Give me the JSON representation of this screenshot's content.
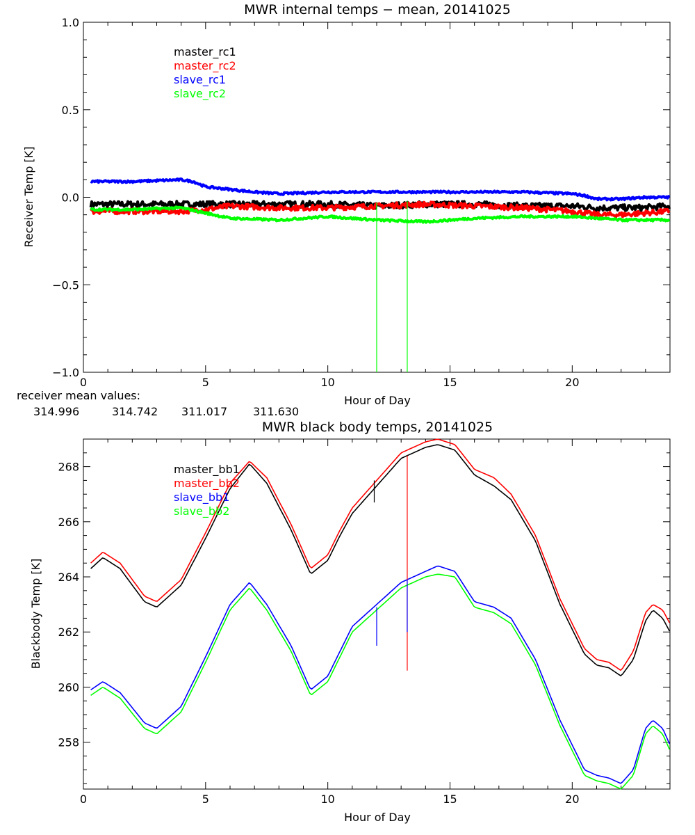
{
  "chart_data": [
    {
      "type": "line",
      "title": "MWR internal temps − mean, 20141025",
      "xlabel": "Hour of Day",
      "ylabel": "Receiver Temp [K]",
      "xlim": [
        0,
        24
      ],
      "ylim": [
        -1.0,
        1.0
      ],
      "xticks": [
        0,
        5,
        10,
        15,
        20
      ],
      "yticks": [
        -1.0,
        -0.5,
        0.0,
        0.5,
        1.0
      ],
      "ytick_labels": [
        "−1.0",
        "−0.5",
        "0.0",
        "0.5",
        "1.0"
      ],
      "legend": [
        "master_rc1",
        "master_rc2",
        "slave_rc1",
        "slave_rc2"
      ],
      "series": [
        {
          "name": "master_rc1",
          "color": "#000000",
          "x": [
            0.3,
            2,
            4,
            6,
            8,
            10,
            12,
            14,
            16,
            18,
            20,
            21,
            22,
            23,
            24
          ],
          "y": [
            -0.04,
            -0.04,
            -0.04,
            -0.04,
            -0.04,
            -0.04,
            -0.05,
            -0.04,
            -0.04,
            -0.05,
            -0.05,
            -0.06,
            -0.06,
            -0.06,
            -0.05
          ]
        },
        {
          "name": "master_rc2",
          "color": "#ff0000",
          "x": [
            0.3,
            2,
            4,
            5,
            6,
            8,
            10,
            12,
            14,
            16,
            18,
            20,
            21,
            22,
            23,
            24
          ],
          "y": [
            -0.08,
            -0.08,
            -0.08,
            -0.07,
            -0.05,
            -0.06,
            -0.06,
            -0.05,
            -0.04,
            -0.05,
            -0.06,
            -0.08,
            -0.1,
            -0.1,
            -0.09,
            -0.08
          ]
        },
        {
          "name": "slave_rc1",
          "color": "#0000ff",
          "x": [
            0.3,
            2,
            4,
            4.5,
            5,
            7,
            8,
            10,
            12,
            14,
            16,
            18,
            20,
            20.5,
            21,
            22,
            23,
            24
          ],
          "y": [
            0.09,
            0.09,
            0.1,
            0.09,
            0.06,
            0.03,
            0.02,
            0.03,
            0.03,
            0.03,
            0.03,
            0.03,
            0.02,
            0.01,
            -0.01,
            -0.01,
            0.0,
            0.0
          ]
        },
        {
          "name": "slave_rc2",
          "color": "#00ff00",
          "x": [
            0.3,
            2,
            4,
            5,
            6,
            8,
            10,
            12,
            14,
            16,
            18,
            20,
            22,
            24
          ],
          "y": [
            -0.07,
            -0.07,
            -0.06,
            -0.09,
            -0.12,
            -0.13,
            -0.11,
            -0.13,
            -0.14,
            -0.12,
            -0.11,
            -0.11,
            -0.13,
            -0.13
          ]
        }
      ],
      "spikes": [
        {
          "series": "slave_rc2",
          "x": 12.0,
          "y_top": -0.03,
          "y_bottom": -1.0
        },
        {
          "series": "slave_rc2",
          "x": 13.25,
          "y_top": -0.02,
          "y_bottom": -1.0
        }
      ],
      "annotation_label": "receiver mean values:",
      "annotation_values": [
        {
          "value": "314.996",
          "color": "#000000"
        },
        {
          "value": "314.742",
          "color": "#ff0000"
        },
        {
          "value": "311.017",
          "color": "#0000ff"
        },
        {
          "value": "311.630",
          "color": "#00ff00"
        }
      ]
    },
    {
      "type": "line",
      "title": "MWR black body temps, 20141025",
      "xlabel": "Hour of Day",
      "ylabel": "Blackbody Temp [K]",
      "xlim": [
        0,
        24
      ],
      "ylim": [
        256.3,
        269.0
      ],
      "xticks": [
        0,
        5,
        10,
        15,
        20
      ],
      "yticks": [
        258,
        260,
        262,
        264,
        266,
        268
      ],
      "legend": [
        "master_bb1",
        "master_bb2",
        "slave_bb1",
        "slave_bb2"
      ],
      "series": [
        {
          "name": "master_bb1",
          "color": "#000000",
          "x": [
            0.3,
            0.8,
            1.5,
            2.5,
            3.0,
            4.0,
            5.0,
            6.0,
            6.8,
            7.5,
            8.5,
            9.3,
            10.0,
            10.5,
            11.0,
            12.0,
            13.0,
            14.0,
            14.5,
            15.2,
            16.0,
            16.8,
            17.5,
            18.5,
            19.5,
            20.5,
            21.0,
            21.5,
            22.0,
            22.5,
            23.0,
            23.3,
            23.7,
            24.0
          ],
          "y": [
            264.3,
            264.7,
            264.3,
            263.1,
            262.9,
            263.7,
            265.4,
            267.2,
            268.1,
            267.4,
            265.7,
            264.1,
            264.6,
            265.5,
            266.3,
            267.3,
            268.3,
            268.7,
            268.8,
            268.6,
            267.7,
            267.3,
            266.8,
            265.3,
            263.0,
            261.2,
            260.8,
            260.7,
            260.4,
            261.0,
            262.4,
            262.8,
            262.5,
            262.0
          ]
        },
        {
          "name": "master_bb2",
          "color": "#ff0000",
          "x": [
            0.3,
            0.8,
            1.5,
            2.5,
            3.0,
            4.0,
            5.0,
            6.0,
            6.8,
            7.5,
            8.5,
            9.3,
            10.0,
            10.5,
            11.0,
            12.0,
            13.0,
            14.0,
            14.5,
            15.2,
            16.0,
            16.8,
            17.5,
            18.5,
            19.5,
            20.5,
            21.0,
            21.5,
            22.0,
            22.5,
            23.0,
            23.3,
            23.7,
            24.0
          ],
          "y": [
            264.5,
            264.9,
            264.5,
            263.3,
            263.1,
            263.9,
            265.6,
            267.4,
            268.2,
            267.6,
            265.9,
            264.3,
            264.8,
            265.7,
            266.5,
            267.5,
            268.5,
            268.9,
            269.0,
            268.8,
            267.9,
            267.6,
            267.0,
            265.5,
            263.2,
            261.4,
            261.0,
            260.9,
            260.6,
            261.3,
            262.7,
            263.0,
            262.8,
            262.3
          ]
        },
        {
          "name": "slave_bb1",
          "color": "#0000ff",
          "x": [
            0.3,
            0.8,
            1.5,
            2.5,
            3.0,
            4.0,
            5.0,
            6.0,
            6.8,
            7.5,
            8.5,
            9.3,
            10.0,
            10.5,
            11.0,
            12.0,
            13.0,
            14.0,
            14.5,
            15.2,
            16.0,
            16.8,
            17.5,
            18.5,
            19.5,
            20.5,
            21.0,
            21.5,
            22.0,
            22.5,
            23.0,
            23.3,
            23.7,
            24.0
          ],
          "y": [
            259.9,
            260.2,
            259.8,
            258.7,
            258.5,
            259.3,
            261.1,
            263.0,
            263.8,
            263.0,
            261.5,
            259.9,
            260.4,
            261.3,
            262.2,
            263.0,
            263.8,
            264.2,
            264.4,
            264.2,
            263.1,
            262.9,
            262.5,
            261.0,
            258.8,
            257.0,
            256.8,
            256.7,
            256.5,
            257.0,
            258.5,
            258.8,
            258.5,
            257.9
          ]
        },
        {
          "name": "slave_bb2",
          "color": "#00ff00",
          "x": [
            0.3,
            0.8,
            1.5,
            2.5,
            3.0,
            4.0,
            5.0,
            6.0,
            6.8,
            7.5,
            8.5,
            9.3,
            10.0,
            10.5,
            11.0,
            12.0,
            13.0,
            14.0,
            14.5,
            15.2,
            16.0,
            16.8,
            17.5,
            18.5,
            19.5,
            20.5,
            21.0,
            21.5,
            22.0,
            22.5,
            23.0,
            23.3,
            23.7,
            24.0
          ],
          "y": [
            259.7,
            260.0,
            259.6,
            258.5,
            258.3,
            259.1,
            260.9,
            262.8,
            263.6,
            262.8,
            261.3,
            259.7,
            260.2,
            261.1,
            262.0,
            262.8,
            263.6,
            264.0,
            264.1,
            264.0,
            262.9,
            262.7,
            262.3,
            260.8,
            258.6,
            256.8,
            256.6,
            256.5,
            256.3,
            256.8,
            258.3,
            258.6,
            258.3,
            257.7
          ]
        }
      ],
      "spikes": [
        {
          "series": "master_bb1",
          "x": 11.9,
          "y_top": 267.5,
          "y_bottom": 266.7
        },
        {
          "series": "slave_bb1",
          "x": 12.0,
          "y_top": 262.9,
          "y_bottom": 261.5
        },
        {
          "series": "master_bb2",
          "x": 13.25,
          "y_top": 268.4,
          "y_bottom": 260.6
        },
        {
          "series": "slave_bb1",
          "x": 13.25,
          "y_top": 263.9,
          "y_bottom": 262.0
        }
      ]
    }
  ]
}
